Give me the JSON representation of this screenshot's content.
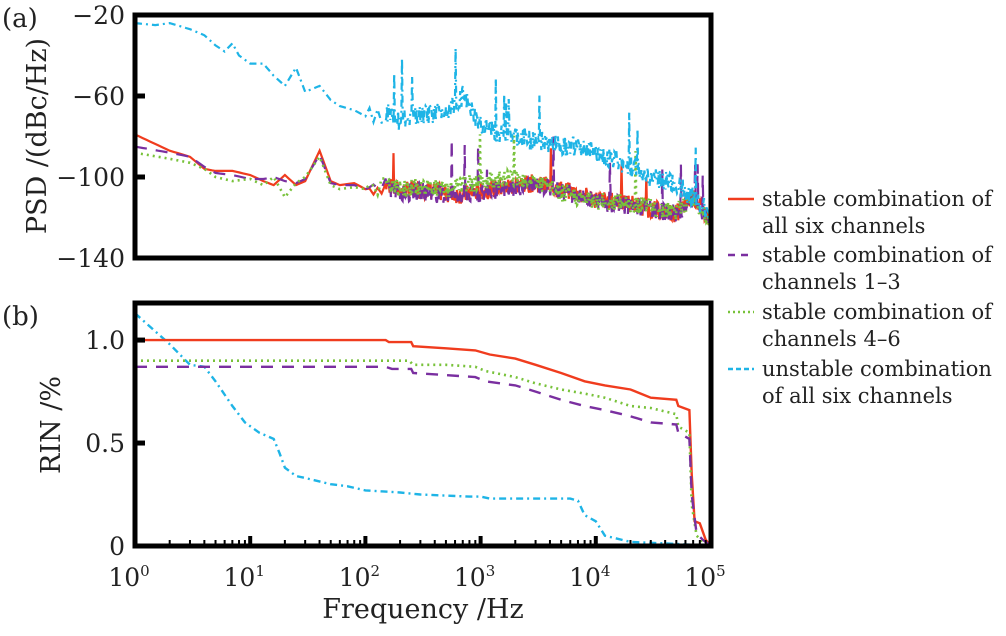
{
  "figure": {
    "legend": [
      {
        "line1": "stable combination of",
        "line2": "all six channels",
        "color": "#f03c1e",
        "style": "solid"
      },
      {
        "line1": "stable combination of",
        "line2": "channels 1–3",
        "color": "#7a2fa0",
        "style": "dashed"
      },
      {
        "line1": "stable combination of",
        "line2": "channels 4–6",
        "color": "#78c23a",
        "style": "dotted"
      },
      {
        "line1": "unstable combination",
        "line2": "of  all six channels",
        "color": "#1eb4e6",
        "style": "dash-dot"
      }
    ],
    "xlabel": "Frequency /Hz"
  },
  "chart_data": [
    {
      "type": "line",
      "panel_label": "(a)",
      "title": "",
      "xlabel": "",
      "ylabel": "PSD /(dBc/Hz)",
      "xscale": "log",
      "xlim": [
        1,
        100000
      ],
      "ylim": [
        -140,
        -20
      ],
      "yticks": [
        -20,
        -60,
        -100,
        -140
      ],
      "ytick_labels": [
        "−20",
        "−60",
        "−100",
        "−140"
      ],
      "grid": false,
      "legend_position": "right",
      "series": [
        {
          "name": "stable combination of all six channels",
          "color": "#f03c1e",
          "x": [
            1,
            2,
            3,
            4,
            5,
            7,
            10,
            13,
            16,
            20,
            25,
            30,
            40,
            50,
            60,
            80,
            100,
            150,
            200,
            300,
            500,
            700,
            1000,
            2000,
            3000,
            5000,
            10000,
            20000,
            30000,
            50000,
            70000,
            100000
          ],
          "y": [
            -79,
            -87,
            -90,
            -96,
            -97,
            -97,
            -99,
            -102,
            -104,
            -99,
            -104,
            -102,
            -87,
            -102,
            -104,
            -103,
            -106,
            -104,
            -107,
            -106,
            -108,
            -109,
            -107,
            -104,
            -103,
            -106,
            -111,
            -113,
            -116,
            -118,
            -110,
            -122
          ]
        },
        {
          "name": "stable combination of channels 1–3",
          "color": "#7a2fa0",
          "x": [
            1,
            2,
            3,
            4,
            5,
            7,
            10,
            13,
            16,
            20,
            25,
            30,
            40,
            50,
            60,
            80,
            100,
            150,
            200,
            300,
            500,
            700,
            1000,
            2000,
            3000,
            5000,
            10000,
            20000,
            30000,
            50000,
            70000,
            100000
          ],
          "y": [
            -85,
            -88,
            -90,
            -95,
            -98,
            -99,
            -101,
            -101,
            -100,
            -102,
            -103,
            -101,
            -89,
            -103,
            -104,
            -104,
            -106,
            -105,
            -108,
            -107,
            -109,
            -109,
            -108,
            -105,
            -104,
            -107,
            -112,
            -114,
            -116,
            -118,
            -111,
            -123
          ]
        },
        {
          "name": "stable combination of channels 4–6",
          "color": "#78c23a",
          "x": [
            1,
            2,
            3,
            4,
            5,
            7,
            10,
            13,
            16,
            20,
            25,
            30,
            40,
            50,
            60,
            80,
            100,
            150,
            200,
            300,
            500,
            700,
            1000,
            2000,
            3000,
            5000,
            10000,
            20000,
            30000,
            50000,
            70000,
            100000
          ],
          "y": [
            -88,
            -91,
            -93,
            -96,
            -100,
            -102,
            -101,
            -104,
            -100,
            -110,
            -103,
            -100,
            -90,
            -104,
            -106,
            -105,
            -106,
            -104,
            -106,
            -105,
            -106,
            -104,
            -102,
            -100,
            -102,
            -108,
            -112,
            -113,
            -115,
            -117,
            -110,
            -122
          ]
        },
        {
          "name": "unstable combination of all six channels",
          "color": "#1eb4e6",
          "x": [
            1,
            1.5,
            2,
            3,
            4,
            5,
            6,
            7,
            8,
            10,
            13,
            16,
            20,
            25,
            30,
            40,
            50,
            60,
            80,
            100,
            150,
            200,
            300,
            500,
            700,
            1000,
            1500,
            2000,
            3000,
            5000,
            7000,
            10000,
            20000,
            30000,
            50000,
            70000,
            100000
          ],
          "y": [
            -24,
            -25,
            -24,
            -27,
            -30,
            -35,
            -38,
            -34,
            -40,
            -44,
            -44,
            -50,
            -55,
            -46,
            -58,
            -55,
            -62,
            -65,
            -67,
            -70,
            -68,
            -72,
            -70,
            -67,
            -60,
            -75,
            -78,
            -80,
            -82,
            -84,
            -86,
            -88,
            -95,
            -100,
            -104,
            -110,
            -118
          ]
        }
      ]
    },
    {
      "type": "line",
      "panel_label": "(b)",
      "title": "",
      "xlabel": "Frequency /Hz",
      "ylabel": "RIN /%",
      "xscale": "log",
      "xlim": [
        1,
        100000
      ],
      "ylim": [
        0,
        1.18
      ],
      "xticks": [
        1,
        10,
        100,
        1000,
        10000,
        100000
      ],
      "xtick_labels": [
        {
          "base": "10",
          "exp": "0"
        },
        {
          "base": "10",
          "exp": "1"
        },
        {
          "base": "10",
          "exp": "2"
        },
        {
          "base": "10",
          "exp": "3"
        },
        {
          "base": "10",
          "exp": "4"
        },
        {
          "base": "10",
          "exp": "5"
        }
      ],
      "yticks": [
        0,
        0.5,
        1.0
      ],
      "ytick_labels": [
        "0",
        "0.5",
        "1.0"
      ],
      "grid": false,
      "series": [
        {
          "name": "stable combination of all six channels",
          "color": "#f03c1e",
          "x": [
            1,
            150,
            160,
            250,
            260,
            500,
            900,
            1200,
            2000,
            3000,
            5000,
            8000,
            12000,
            20000,
            30000,
            50000,
            52000,
            65000,
            68000,
            72000,
            80000,
            90000,
            100000
          ],
          "y": [
            1.0,
            1.0,
            0.99,
            0.99,
            0.97,
            0.96,
            0.95,
            0.93,
            0.91,
            0.88,
            0.84,
            0.8,
            0.78,
            0.76,
            0.72,
            0.71,
            0.68,
            0.66,
            0.35,
            0.12,
            0.11,
            0.03,
            0.0
          ]
        },
        {
          "name": "stable combination of channels 1–3",
          "color": "#7a2fa0",
          "x": [
            1,
            150,
            170,
            250,
            260,
            500,
            900,
            1100,
            2000,
            3000,
            5000,
            8000,
            12000,
            20000,
            30000,
            50000,
            52000,
            65000,
            68000,
            75000,
            85000,
            100000
          ],
          "y": [
            0.87,
            0.87,
            0.86,
            0.86,
            0.84,
            0.83,
            0.82,
            0.8,
            0.78,
            0.75,
            0.71,
            0.68,
            0.66,
            0.63,
            0.6,
            0.59,
            0.55,
            0.52,
            0.25,
            0.06,
            0.03,
            0.0
          ]
        },
        {
          "name": "stable combination of channels 4–6",
          "color": "#78c23a",
          "x": [
            1,
            240,
            260,
            500,
            900,
            1100,
            2000,
            3000,
            5000,
            8000,
            12000,
            20000,
            30000,
            50000,
            52000,
            65000,
            68000,
            75000,
            85000,
            100000
          ],
          "y": [
            0.9,
            0.9,
            0.88,
            0.88,
            0.87,
            0.85,
            0.82,
            0.79,
            0.76,
            0.74,
            0.72,
            0.68,
            0.67,
            0.64,
            0.58,
            0.55,
            0.2,
            0.05,
            0.02,
            0.0
          ]
        },
        {
          "name": "unstable combination of all six channels",
          "color": "#1eb4e6",
          "x": [
            1,
            2,
            3,
            4,
            5,
            7,
            9,
            12,
            16,
            18,
            20,
            25,
            30,
            50,
            70,
            100,
            200,
            300,
            800,
            1000,
            1200,
            3000,
            6000,
            7000,
            8000,
            10000,
            12000,
            20000,
            50000,
            100000
          ],
          "y": [
            1.13,
            0.98,
            0.88,
            0.87,
            0.8,
            0.68,
            0.6,
            0.55,
            0.52,
            0.45,
            0.38,
            0.34,
            0.33,
            0.3,
            0.29,
            0.27,
            0.26,
            0.25,
            0.24,
            0.24,
            0.23,
            0.23,
            0.23,
            0.22,
            0.15,
            0.12,
            0.05,
            0.02,
            0.01,
            0.0
          ]
        }
      ]
    }
  ]
}
